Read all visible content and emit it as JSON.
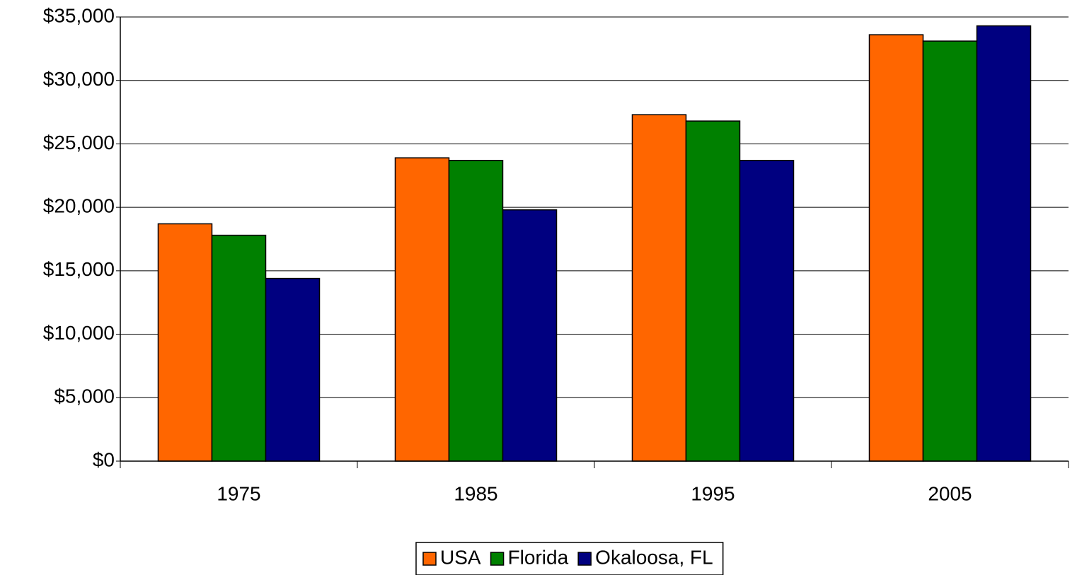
{
  "chart_data": {
    "type": "bar",
    "categories": [
      "1975",
      "1985",
      "1995",
      "2005"
    ],
    "series": [
      {
        "name": "USA",
        "color": "#ff6600",
        "values": [
          18700,
          23900,
          27300,
          33600
        ]
      },
      {
        "name": "Florida",
        "color": "#008000",
        "values": [
          17800,
          23700,
          26800,
          33100
        ]
      },
      {
        "name": "Okaloosa, FL",
        "color": "#000080",
        "values": [
          14400,
          19800,
          23700,
          34300
        ]
      }
    ],
    "ylim": [
      0,
      35000
    ],
    "yticks": [
      {
        "value": 0,
        "label": "$0"
      },
      {
        "value": 5000,
        "label": "$5,000"
      },
      {
        "value": 10000,
        "label": "$10,000"
      },
      {
        "value": 15000,
        "label": "$15,000"
      },
      {
        "value": 20000,
        "label": "$20,000"
      },
      {
        "value": 25000,
        "label": "$25,000"
      },
      {
        "value": 30000,
        "label": "$30,000"
      },
      {
        "value": 35000,
        "label": "$35,000"
      }
    ],
    "grid": true,
    "legend": "bottom"
  }
}
